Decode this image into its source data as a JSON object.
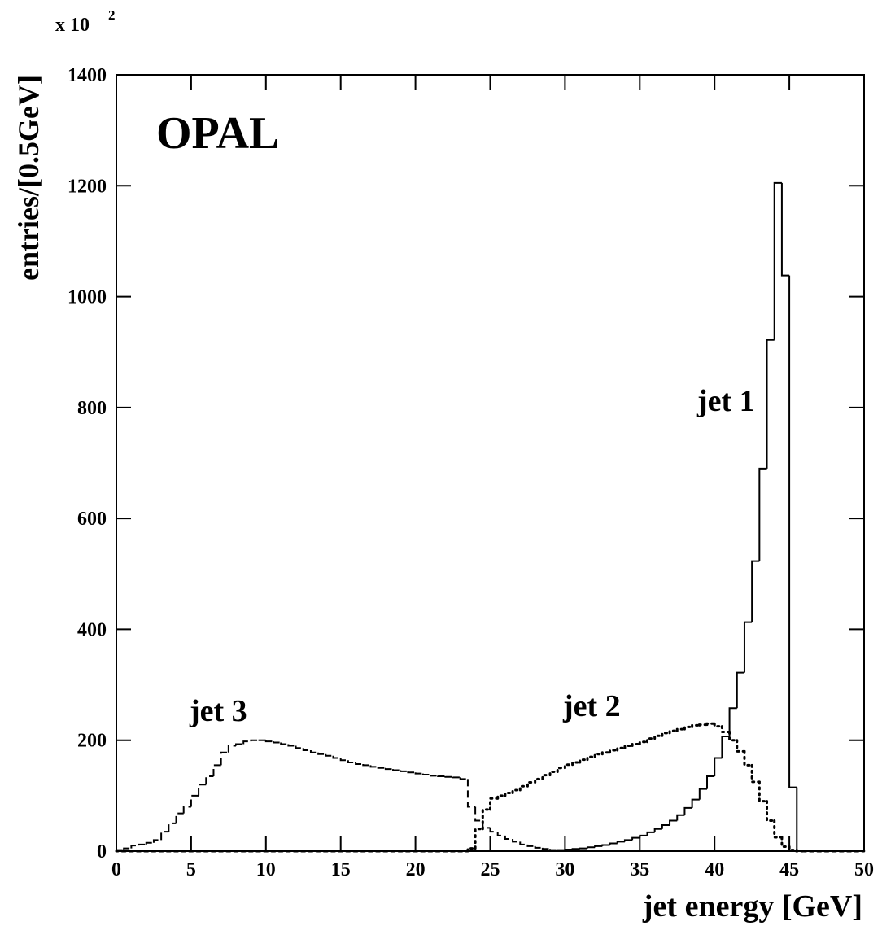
{
  "chart_data": {
    "type": "histogram",
    "annotations": {
      "multiplier": "x 10",
      "multiplier_exp": "2",
      "experiment": "OPAL"
    },
    "xlabel": "jet energy [GeV]",
    "ylabel": "entries/[0.5GeV]",
    "bins": [
      0,
      0.5,
      1,
      1.5,
      2,
      2.5,
      3,
      3.5,
      4,
      4.5,
      5,
      5.5,
      6,
      6.5,
      7,
      7.5,
      8,
      8.5,
      9,
      9.5,
      10,
      10.5,
      11,
      11.5,
      12,
      12.5,
      13,
      13.5,
      14,
      14.5,
      15,
      15.5,
      16,
      16.5,
      17,
      17.5,
      18,
      18.5,
      19,
      19.5,
      20,
      20.5,
      21,
      21.5,
      22,
      22.5,
      23,
      23.5,
      24,
      24.5,
      25,
      25.5,
      26,
      26.5,
      27,
      27.5,
      28,
      28.5,
      29,
      29.5,
      30,
      30.5,
      31,
      31.5,
      32,
      32.5,
      33,
      33.5,
      34,
      34.5,
      35,
      35.5,
      36,
      36.5,
      37,
      37.5,
      38,
      38.5,
      39,
      39.5,
      40,
      40.5,
      41,
      41.5,
      42,
      42.5,
      43,
      43.5,
      44,
      44.5,
      45,
      45.5,
      46,
      46.5,
      47,
      47.5,
      48,
      48.5,
      49,
      49.5,
      50
    ],
    "series": [
      {
        "name": "jet 1",
        "color": "#000000",
        "line_style": "solid",
        "values": [
          0,
          0,
          0,
          0,
          0,
          0,
          0,
          0,
          0,
          0,
          0,
          0,
          0,
          0,
          0,
          0,
          0,
          0,
          0,
          0,
          0,
          0,
          0,
          0,
          0,
          0,
          0,
          0,
          0,
          0,
          0,
          0,
          0,
          0,
          0,
          0,
          0,
          0,
          0,
          0,
          0,
          0,
          0,
          0,
          0,
          0,
          0,
          0,
          0,
          0,
          0,
          0,
          0,
          0,
          0,
          0,
          0,
          0,
          1,
          2,
          3,
          4,
          5,
          7,
          9,
          11,
          14,
          17,
          20,
          24,
          28,
          34,
          40,
          47,
          55,
          65,
          78,
          93,
          112,
          135,
          168,
          207,
          258,
          322,
          413,
          523,
          690,
          922,
          1205,
          1038,
          115,
          0,
          0,
          0,
          0,
          0,
          0,
          0,
          0,
          0
        ]
      },
      {
        "name": "jet 2",
        "color": "#000000",
        "line_style": "dotted",
        "values": [
          0,
          0,
          0,
          0,
          0,
          0,
          0,
          0,
          0,
          0,
          0,
          0,
          0,
          0,
          0,
          0,
          0,
          0,
          0,
          0,
          0,
          0,
          0,
          0,
          0,
          0,
          0,
          0,
          0,
          0,
          0,
          0,
          0,
          0,
          0,
          0,
          0,
          0,
          0,
          0,
          0,
          0,
          0,
          0,
          0,
          0,
          0,
          5,
          40,
          75,
          95,
          100,
          105,
          110,
          117,
          124,
          130,
          137,
          143,
          150,
          156,
          160,
          165,
          170,
          175,
          178,
          182,
          186,
          190,
          193,
          197,
          203,
          208,
          213,
          217,
          220,
          224,
          227,
          228,
          230,
          225,
          215,
          200,
          180,
          155,
          125,
          90,
          55,
          25,
          8,
          2,
          0,
          0,
          0,
          0,
          0,
          0,
          0,
          0,
          0
        ]
      },
      {
        "name": "jet 3",
        "color": "#000000",
        "line_style": "dashed",
        "values": [
          2,
          5,
          10,
          12,
          15,
          20,
          35,
          50,
          68,
          80,
          100,
          120,
          135,
          155,
          178,
          190,
          193,
          198,
          200,
          200,
          198,
          196,
          193,
          190,
          186,
          182,
          178,
          175,
          172,
          168,
          164,
          160,
          157,
          155,
          152,
          150,
          148,
          146,
          144,
          142,
          140,
          138,
          136,
          135,
          134,
          133,
          130,
          80,
          55,
          42,
          35,
          28,
          22,
          17,
          12,
          9,
          6,
          4,
          2,
          1,
          0,
          0,
          0,
          0,
          0,
          0,
          0,
          0,
          0,
          0,
          0,
          0,
          0,
          0,
          0,
          0,
          0,
          0,
          0,
          0,
          0,
          0,
          0,
          0,
          0,
          0,
          0,
          0,
          0,
          0,
          0,
          0,
          0,
          0,
          0,
          0,
          0,
          0,
          0,
          0
        ]
      }
    ],
    "xlim": [
      0,
      50
    ],
    "xticks": [
      0,
      5,
      10,
      15,
      20,
      25,
      30,
      35,
      40,
      45,
      50
    ],
    "ylim": [
      0,
      1400
    ],
    "yticks": [
      0,
      200,
      400,
      600,
      800,
      1000,
      1200,
      1400
    ],
    "grid": false
  }
}
